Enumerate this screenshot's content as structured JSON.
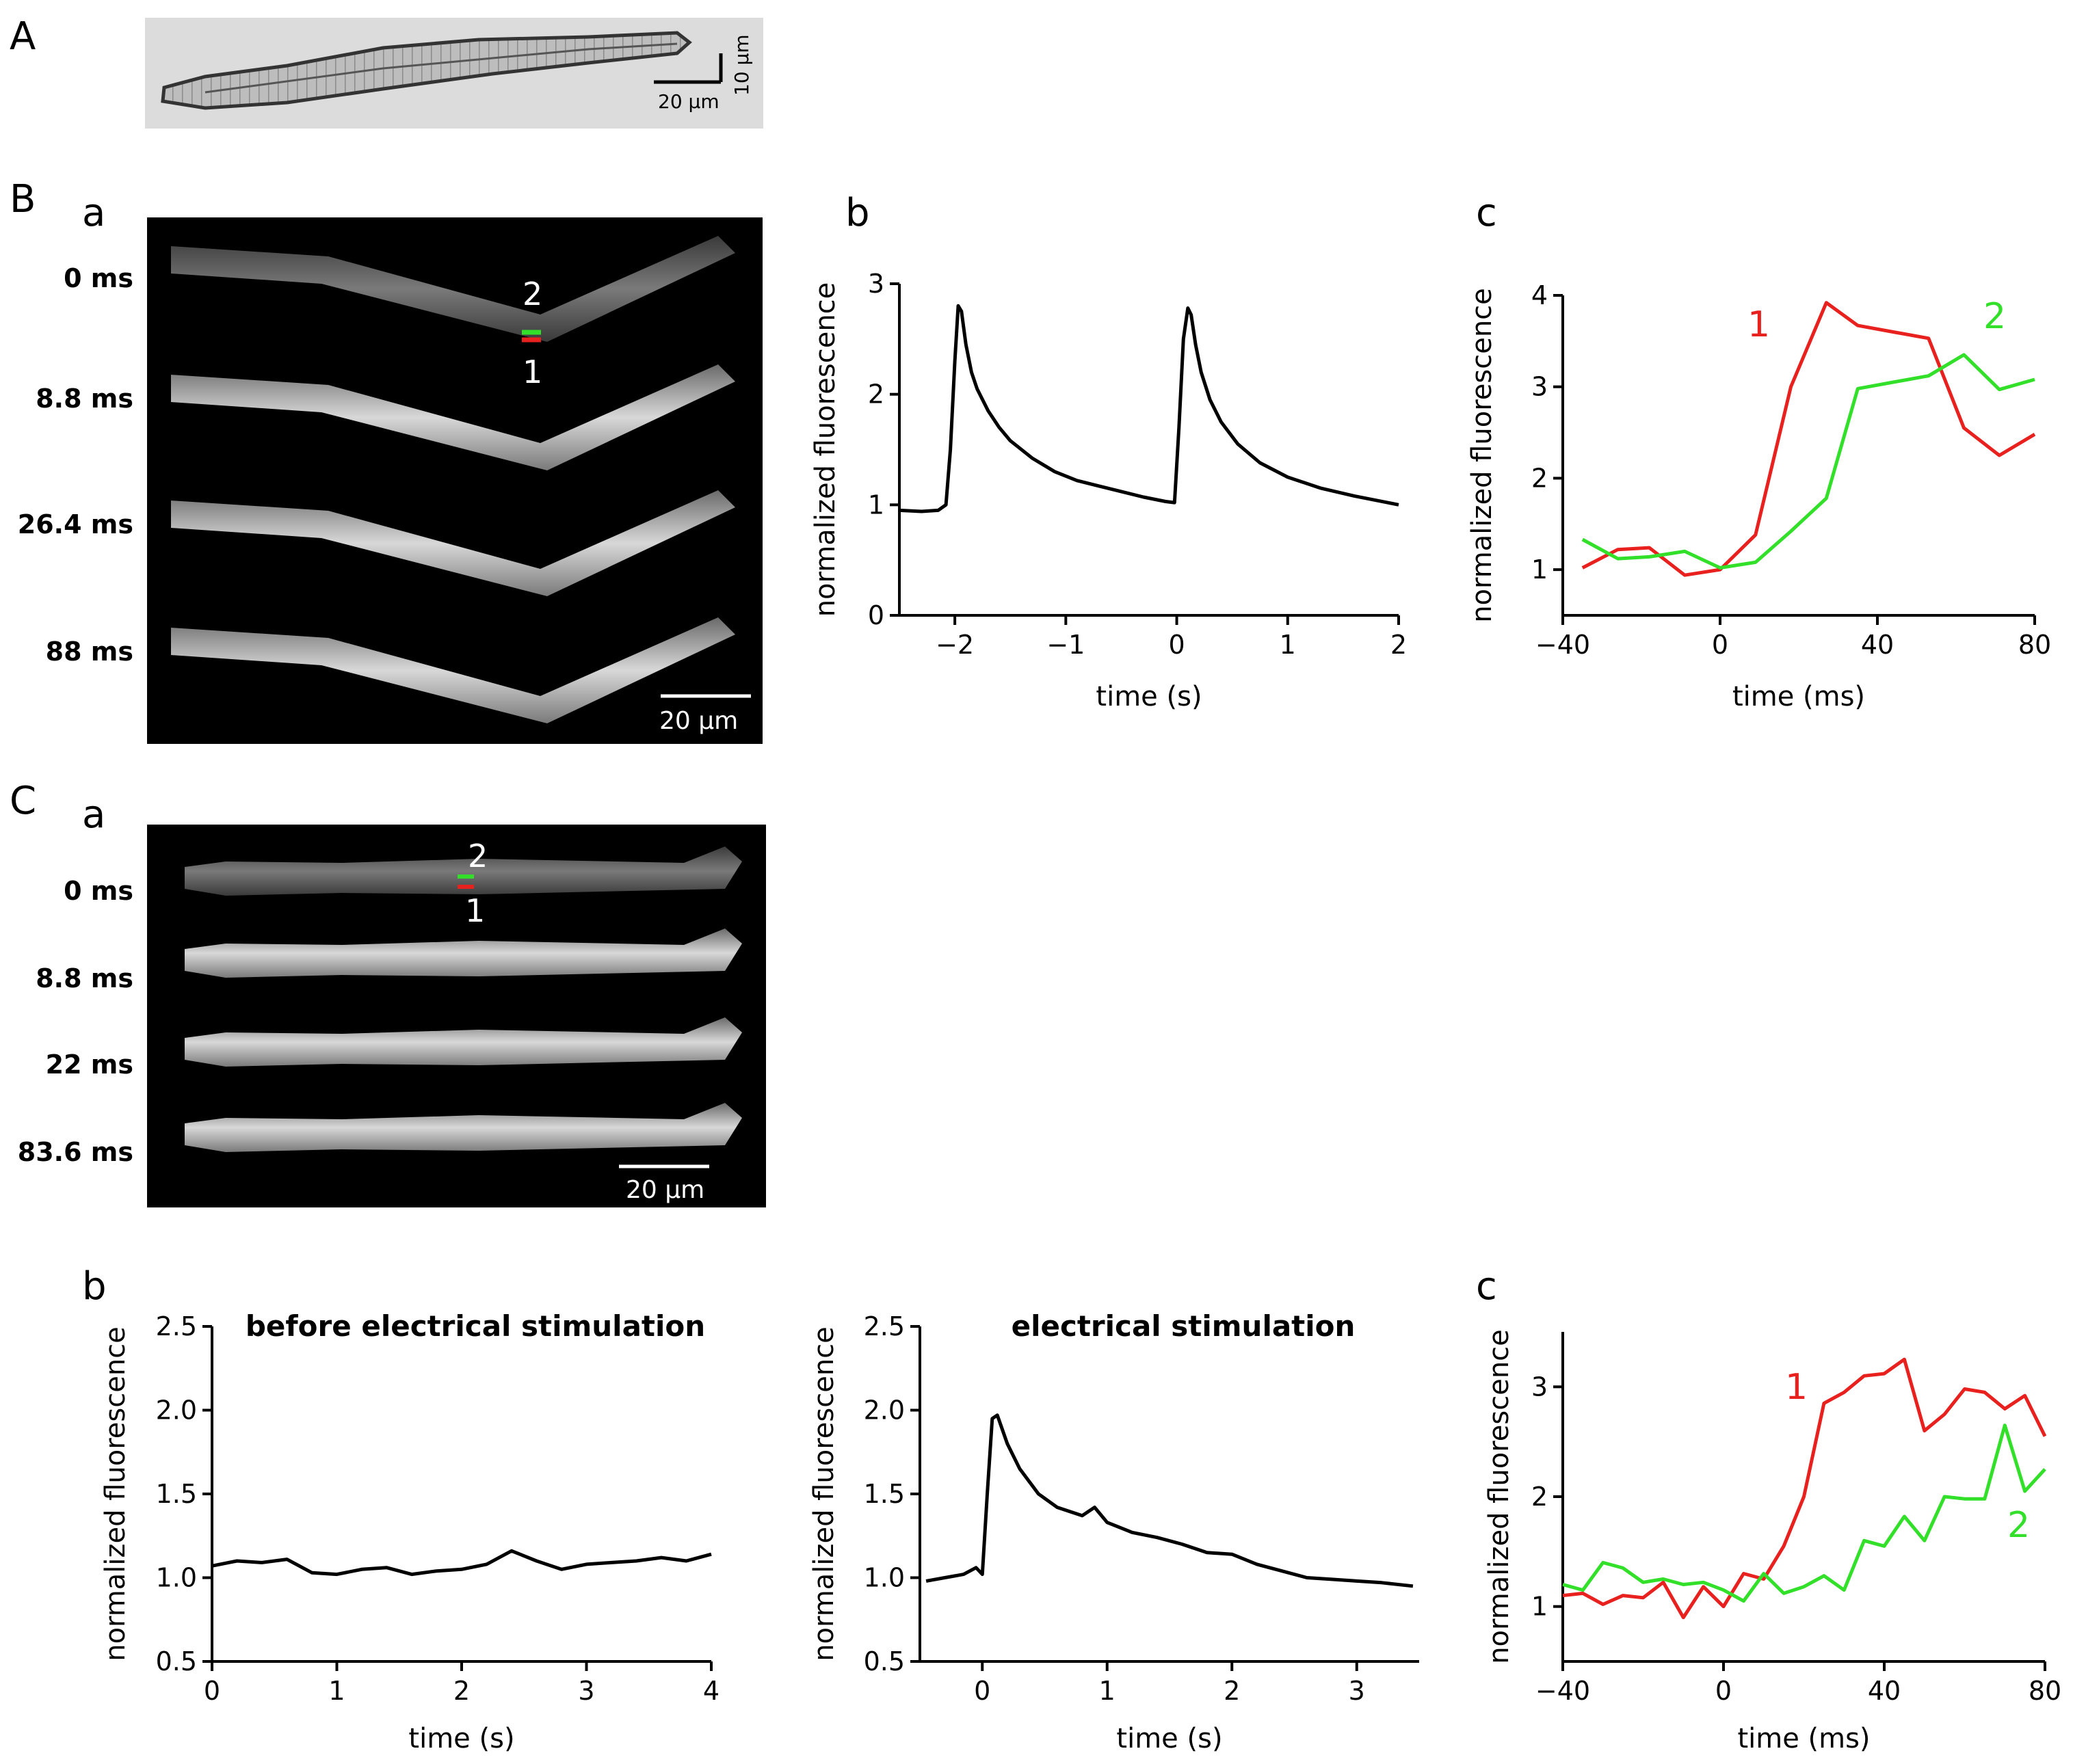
{
  "panels": {
    "A": {
      "label": "A",
      "scale_h": "20 µm",
      "scale_v": "10 µm"
    },
    "B": {
      "label": "B",
      "a": {
        "label": "a",
        "frames": [
          "0 ms",
          "8.8 ms",
          "26.4 ms",
          "88 ms"
        ],
        "scale": "20 µm",
        "marker1": "1",
        "marker2": "2"
      },
      "b_label": "b",
      "c_label": "c"
    },
    "C": {
      "label": "C",
      "a": {
        "label": "a",
        "frames": [
          "0 ms",
          "8.8 ms",
          "22 ms",
          "83.6 ms"
        ],
        "scale": "20 µm",
        "marker1": "1",
        "marker2": "2"
      },
      "b_label": "b",
      "c_label": "c"
    }
  },
  "colors": {
    "red": "#e8201e",
    "green": "#32e02a",
    "black": "#000000"
  },
  "chart_data": [
    {
      "id": "Bb",
      "type": "line",
      "title": "",
      "xlabel": "time (s)",
      "ylabel": "normalized fluorescence",
      "xlim": [
        -2.5,
        2.0
      ],
      "ylim": [
        0,
        3
      ],
      "xticks": [
        -2,
        -1,
        0,
        1,
        2
      ],
      "xtick_labels": [
        "−2",
        "−1",
        "0",
        "1",
        "2"
      ],
      "yticks": [
        0,
        1,
        2,
        3
      ],
      "ytick_labels": [
        "0",
        "1",
        "2",
        "3"
      ],
      "series": [
        {
          "name": "fluorescence",
          "color": "#000000",
          "x": [
            -2.5,
            -2.3,
            -2.15,
            -2.08,
            -2.04,
            -2.0,
            -1.97,
            -1.94,
            -1.9,
            -1.85,
            -1.8,
            -1.7,
            -1.6,
            -1.5,
            -1.3,
            -1.1,
            -0.9,
            -0.7,
            -0.5,
            -0.3,
            -0.1,
            -0.02,
            0.02,
            0.06,
            0.1,
            0.13,
            0.17,
            0.22,
            0.3,
            0.4,
            0.55,
            0.75,
            1.0,
            1.3,
            1.6,
            1.9,
            2.0
          ],
          "y": [
            0.95,
            0.94,
            0.95,
            1.0,
            1.5,
            2.3,
            2.8,
            2.75,
            2.45,
            2.2,
            2.05,
            1.85,
            1.7,
            1.58,
            1.42,
            1.3,
            1.22,
            1.17,
            1.12,
            1.07,
            1.03,
            1.02,
            1.7,
            2.5,
            2.78,
            2.72,
            2.45,
            2.2,
            1.95,
            1.75,
            1.55,
            1.38,
            1.25,
            1.15,
            1.08,
            1.02,
            1.0
          ]
        }
      ]
    },
    {
      "id": "Bc",
      "type": "line",
      "title": "",
      "xlabel": "time (ms)",
      "ylabel": "normalized fluorescence",
      "xlim": [
        -40,
        80
      ],
      "ylim": [
        0.5,
        4
      ],
      "xticks": [
        -40,
        0,
        40,
        80
      ],
      "xtick_labels": [
        "−40",
        "0",
        "40",
        "80"
      ],
      "yticks": [
        1,
        2,
        3,
        4
      ],
      "ytick_labels": [
        "1",
        "2",
        "3",
        "4"
      ],
      "series": [
        {
          "name": "1",
          "color": "#e8201e",
          "x": [
            -35,
            -26,
            -18,
            -9,
            0,
            9,
            18,
            27,
            35,
            44,
            53,
            62,
            71,
            80
          ],
          "y": [
            1.02,
            1.22,
            1.24,
            0.94,
            1.0,
            1.38,
            3.0,
            3.92,
            3.67,
            3.6,
            3.53,
            2.55,
            2.25,
            2.48
          ]
        },
        {
          "name": "2",
          "color": "#32e02a",
          "x": [
            -35,
            -26,
            -18,
            -9,
            0,
            9,
            18,
            27,
            35,
            44,
            53,
            62,
            71,
            80
          ],
          "y": [
            1.33,
            1.12,
            1.14,
            1.2,
            1.02,
            1.08,
            1.42,
            1.78,
            2.98,
            3.05,
            3.12,
            3.35,
            2.97,
            3.08
          ]
        }
      ]
    },
    {
      "id": "Cb1",
      "type": "line",
      "title": "before electrical stimulation",
      "xlabel": "time (s)",
      "ylabel": "normalized fluorescence",
      "xlim": [
        0,
        4
      ],
      "ylim": [
        0.5,
        2.5
      ],
      "xticks": [
        0,
        1,
        2,
        3,
        4
      ],
      "xtick_labels": [
        "0",
        "1",
        "2",
        "3",
        "4"
      ],
      "yticks": [
        0.5,
        1.0,
        1.5,
        2.0,
        2.5
      ],
      "ytick_labels": [
        "0.5",
        "1.0",
        "1.5",
        "2.0",
        "2.5"
      ],
      "series": [
        {
          "name": "fluorescence",
          "color": "#000000",
          "x": [
            0,
            0.2,
            0.4,
            0.6,
            0.8,
            1.0,
            1.2,
            1.4,
            1.6,
            1.8,
            2.0,
            2.2,
            2.4,
            2.6,
            2.8,
            3.0,
            3.2,
            3.4,
            3.6,
            3.8,
            4.0
          ],
          "y": [
            1.07,
            1.1,
            1.09,
            1.11,
            1.03,
            1.02,
            1.05,
            1.06,
            1.02,
            1.04,
            1.05,
            1.08,
            1.16,
            1.1,
            1.05,
            1.08,
            1.09,
            1.1,
            1.12,
            1.1,
            1.14
          ]
        }
      ]
    },
    {
      "id": "Cb2",
      "type": "line",
      "title": "electrical stimulation",
      "xlabel": "time (s)",
      "ylabel": "normalized fluorescence",
      "xlim": [
        -0.5,
        3.5
      ],
      "ylim": [
        0.5,
        2.5
      ],
      "xticks": [
        0,
        1,
        2,
        3
      ],
      "xtick_labels": [
        "0",
        "1",
        "2",
        "3"
      ],
      "yticks": [
        0.5,
        1.0,
        1.5,
        2.0,
        2.5
      ],
      "ytick_labels": [
        "0.5",
        "1.0",
        "1.5",
        "2.0",
        "2.5"
      ],
      "series": [
        {
          "name": "fluorescence",
          "color": "#000000",
          "x": [
            -0.45,
            -0.3,
            -0.15,
            -0.05,
            0.0,
            0.04,
            0.08,
            0.12,
            0.2,
            0.3,
            0.45,
            0.6,
            0.8,
            0.9,
            1.0,
            1.2,
            1.4,
            1.6,
            1.8,
            2.0,
            2.2,
            2.4,
            2.6,
            2.8,
            3.0,
            3.2,
            3.45
          ],
          "y": [
            0.98,
            1.0,
            1.02,
            1.06,
            1.02,
            1.5,
            1.95,
            1.97,
            1.8,
            1.65,
            1.5,
            1.42,
            1.37,
            1.42,
            1.33,
            1.27,
            1.24,
            1.2,
            1.15,
            1.14,
            1.08,
            1.04,
            1.0,
            0.99,
            0.98,
            0.97,
            0.95
          ]
        }
      ]
    },
    {
      "id": "Cc",
      "type": "line",
      "title": "",
      "xlabel": "time (ms)",
      "ylabel": "normalized fluorescence",
      "xlim": [
        -40,
        80
      ],
      "ylim": [
        0.5,
        3.5
      ],
      "xticks": [
        -40,
        0,
        40,
        80
      ],
      "xtick_labels": [
        "−40",
        "0",
        "40",
        "80"
      ],
      "yticks": [
        1,
        2,
        3
      ],
      "ytick_labels": [
        "1",
        "2",
        "3"
      ],
      "series": [
        {
          "name": "1",
          "color": "#e8201e",
          "x": [
            -40,
            -35,
            -30,
            -25,
            -20,
            -15,
            -10,
            -5,
            0,
            5,
            10,
            15,
            20,
            25,
            30,
            35,
            40,
            45,
            50,
            55,
            60,
            65,
            70,
            75,
            80
          ],
          "y": [
            1.1,
            1.12,
            1.02,
            1.1,
            1.08,
            1.22,
            0.9,
            1.18,
            1.0,
            1.3,
            1.25,
            1.55,
            2.0,
            2.85,
            2.95,
            3.1,
            3.12,
            3.25,
            2.6,
            2.75,
            2.98,
            2.95,
            2.8,
            2.92,
            2.55
          ]
        },
        {
          "name": "2",
          "color": "#32e02a",
          "x": [
            -40,
            -35,
            -30,
            -25,
            -20,
            -15,
            -10,
            -5,
            0,
            5,
            10,
            15,
            20,
            25,
            30,
            35,
            40,
            45,
            50,
            55,
            60,
            65,
            70,
            75,
            80
          ],
          "y": [
            1.2,
            1.15,
            1.4,
            1.35,
            1.22,
            1.25,
            1.2,
            1.22,
            1.15,
            1.05,
            1.3,
            1.12,
            1.18,
            1.28,
            1.15,
            1.6,
            1.55,
            1.82,
            1.6,
            2.0,
            1.98,
            1.98,
            2.65,
            2.05,
            2.25
          ]
        }
      ]
    }
  ]
}
